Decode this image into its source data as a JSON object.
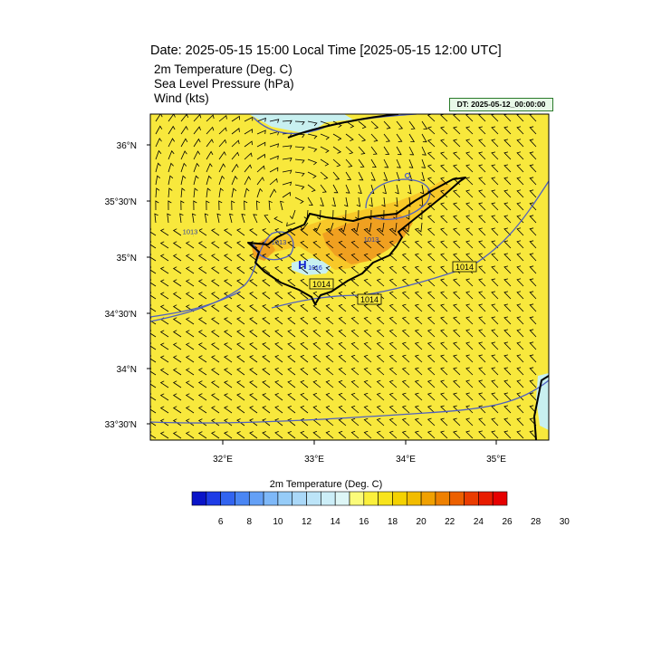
{
  "header": {
    "title": "Date: 2025-05-15  15:00 Local Time [2025-05-15  12:00 UTC]",
    "fields": [
      "2m Temperature (Deg. C)",
      "Sea Level Pressure   (hPa)",
      "Wind   (kts)"
    ],
    "dt_label": "DT: 2025-05-12_00:00:00"
  },
  "map": {
    "lat_ticks": [
      "36°N",
      "35°30'N",
      "35°N",
      "34°30'N",
      "34°N",
      "33°30'N"
    ],
    "lon_ticks": [
      "32°E",
      "33°E",
      "34°E",
      "35°E"
    ],
    "pressure_labels": [
      "1013",
      "1013",
      "1013",
      "1014",
      "1014",
      "1014"
    ],
    "high_label": "H",
    "high_value": "1016"
  },
  "colorbar": {
    "title": "2m Temperature (Deg. C)",
    "labels": [
      "6",
      "8",
      "10",
      "12",
      "14",
      "16",
      "18",
      "20",
      "22",
      "24",
      "26",
      "28",
      "30"
    ],
    "colors": [
      "#0a14c8",
      "#1e3ce6",
      "#3264f0",
      "#4a86f4",
      "#64a0f6",
      "#7eb8f8",
      "#96ccf8",
      "#aad8f8",
      "#bce4f8",
      "#cceef8",
      "#def6f6",
      "#fbfb7a",
      "#fbf03c",
      "#f8e41c",
      "#f4d200",
      "#f2bc00",
      "#f0a000",
      "#ee8000",
      "#ec6000",
      "#ea3c00",
      "#e81c00",
      "#e60000"
    ]
  },
  "colors": {
    "land_warm": "#f0a020",
    "sea_yellow": "#f8e83c",
    "cool_patch": "#c8f0f0",
    "isobar": "#5060c0",
    "coast": "#000000"
  }
}
